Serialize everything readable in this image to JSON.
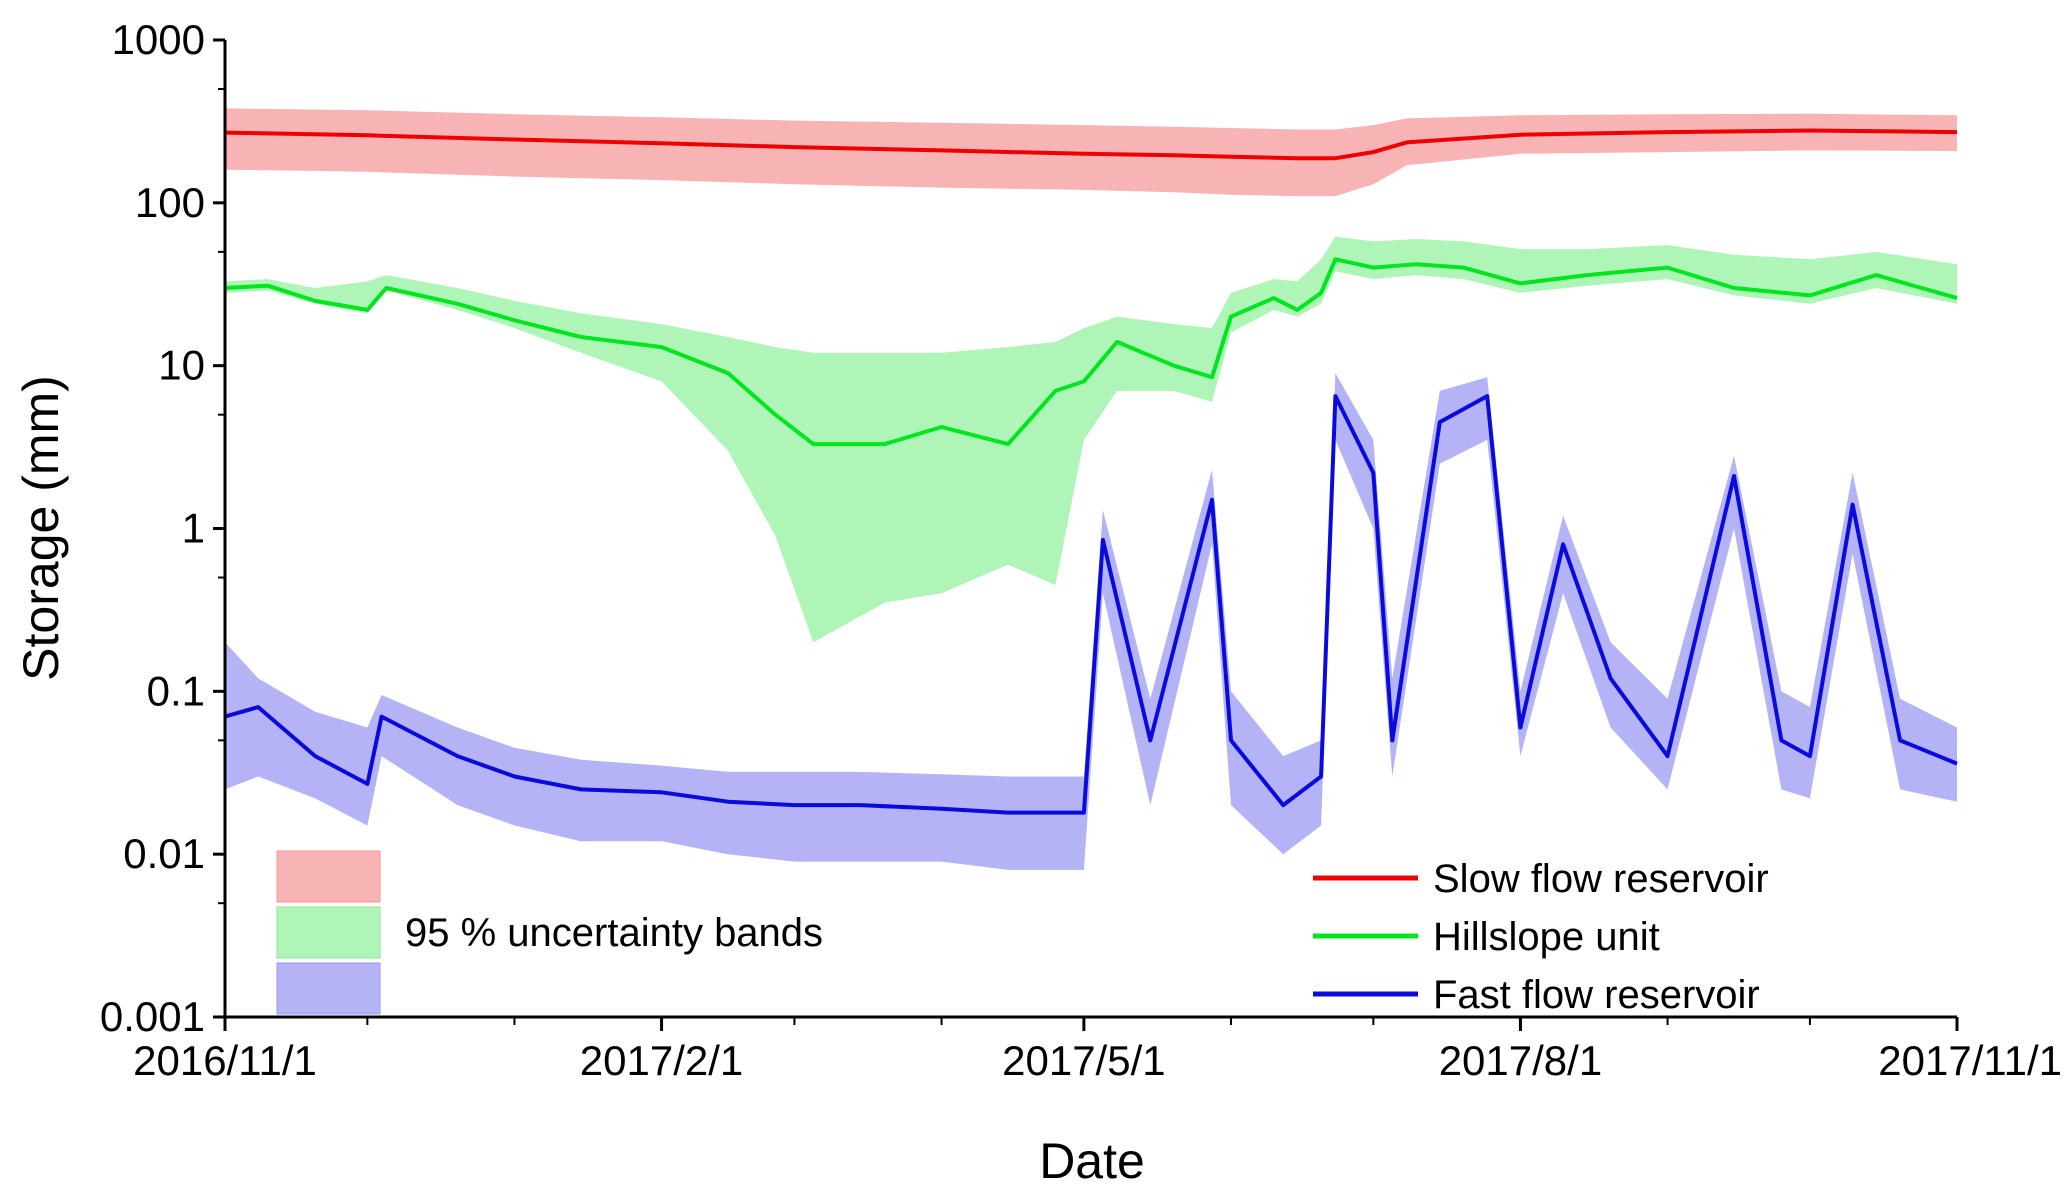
{
  "chart_data": {
    "type": "line",
    "xlabel": "Date",
    "ylabel": "Storage (mm)",
    "yscale": "log",
    "ylim": [
      0.001,
      1000
    ],
    "xlim": [
      "2016/11/1",
      "2017/11/1"
    ],
    "grid": false,
    "x_tick_labels": [
      "2016/11/1",
      "2017/2/1",
      "2017/5/1",
      "2017/8/1",
      "2017/11/1"
    ],
    "y_tick_labels": [
      "0.001",
      "0.01",
      "0.1",
      "1",
      "10",
      "100",
      "1000"
    ],
    "legend": {
      "placement": "bottom-right",
      "entries": [
        "Slow flow reservoir",
        "Hillslope unit",
        "Fast flow reservoir"
      ]
    },
    "band_legend": {
      "placement": "bottom-left",
      "label": "95 % uncertainty bands"
    },
    "colors": {
      "slow_line": "#ee0000",
      "slow_band": "#f8b4b4",
      "hill_line": "#00e61e",
      "hill_band": "#b0f5b8",
      "fast_line": "#0a0adc",
      "fast_band": "#b3b3f6"
    },
    "series": [
      {
        "name": "Slow flow reservoir",
        "x": [
          "2016/11/1",
          "2016/12/1",
          "2017/1/1",
          "2017/2/1",
          "2017/3/1",
          "2017/4/1",
          "2017/5/1",
          "2017/5/20",
          "2017/6/1",
          "2017/6/15",
          "2017/6/23",
          "2017/7/1",
          "2017/7/8",
          "2017/8/1",
          "2017/9/1",
          "2017/10/1",
          "2017/11/1"
        ],
        "y": [
          270,
          260,
          245,
          232,
          220,
          210,
          200,
          196,
          192,
          188,
          188,
          205,
          235,
          262,
          272,
          278,
          272
        ],
        "band_lower": [
          160,
          155,
          145,
          138,
          130,
          124,
          120,
          116,
          112,
          110,
          110,
          130,
          170,
          200,
          205,
          210,
          208
        ],
        "band_upper": [
          380,
          370,
          350,
          335,
          320,
          310,
          300,
          293,
          288,
          282,
          282,
          300,
          330,
          345,
          350,
          352,
          345
        ]
      },
      {
        "name": "Hillslope unit",
        "x": [
          "2016/11/1",
          "2016/11/10",
          "2016/11/20",
          "2016/12/1",
          "2016/12/5",
          "2016/12/20",
          "2017/1/1",
          "2017/1/15",
          "2017/2/1",
          "2017/2/15",
          "2017/2/25",
          "2017/3/5",
          "2017/3/20",
          "2017/4/1",
          "2017/4/15",
          "2017/4/25",
          "2017/5/1",
          "2017/5/8",
          "2017/5/20",
          "2017/5/28",
          "2017/6/1",
          "2017/6/10",
          "2017/6/15",
          "2017/6/20",
          "2017/6/23",
          "2017/7/1",
          "2017/7/10",
          "2017/7/20",
          "2017/8/1",
          "2017/8/15",
          "2017/9/1",
          "2017/9/15",
          "2017/10/1",
          "2017/10/15",
          "2017/11/1"
        ],
        "y": [
          30,
          31,
          25,
          22,
          30,
          24,
          19,
          15,
          13,
          9,
          5,
          3.3,
          3.3,
          4.2,
          3.3,
          7,
          8,
          14,
          10,
          8.5,
          20,
          26,
          22,
          28,
          45,
          40,
          42,
          40,
          32,
          36,
          40,
          30,
          27,
          36,
          26
        ],
        "band_lower": [
          28,
          29,
          24,
          21,
          29,
          22,
          17,
          12,
          8,
          3,
          0.9,
          0.2,
          0.35,
          0.4,
          0.6,
          0.45,
          3.5,
          7,
          7,
          6,
          16,
          22,
          20,
          24,
          38,
          34,
          36,
          34,
          28,
          31,
          34,
          27,
          24,
          30,
          24
        ],
        "band_upper": [
          33,
          34,
          30,
          33,
          36,
          30,
          25,
          21,
          18,
          15,
          13,
          12,
          12,
          12,
          13,
          14,
          17,
          20,
          18,
          17,
          28,
          34,
          33,
          45,
          62,
          58,
          60,
          58,
          52,
          52,
          55,
          48,
          45,
          50,
          42
        ]
      },
      {
        "name": "Fast flow reservoir",
        "x": [
          "2016/11/1",
          "2016/11/8",
          "2016/11/20",
          "2016/12/1",
          "2016/12/4",
          "2016/12/20",
          "2017/1/1",
          "2017/1/15",
          "2017/2/1",
          "2017/2/15",
          "2017/3/1",
          "2017/3/15",
          "2017/4/1",
          "2017/4/15",
          "2017/5/1",
          "2017/5/5",
          "2017/5/15",
          "2017/5/28",
          "2017/6/1",
          "2017/6/12",
          "2017/6/20",
          "2017/6/23",
          "2017/7/1",
          "2017/7/5",
          "2017/7/15",
          "2017/7/25",
          "2017/8/1",
          "2017/8/10",
          "2017/8/20",
          "2017/9/1",
          "2017/9/15",
          "2017/9/25",
          "2017/10/1",
          "2017/10/10",
          "2017/10/20",
          "2017/11/1"
        ],
        "y": [
          0.07,
          0.08,
          0.04,
          0.027,
          0.07,
          0.04,
          0.03,
          0.025,
          0.024,
          0.021,
          0.02,
          0.02,
          0.019,
          0.018,
          0.018,
          0.85,
          0.05,
          1.5,
          0.05,
          0.02,
          0.03,
          6.5,
          2.2,
          0.05,
          4.5,
          6.5,
          0.06,
          0.8,
          0.12,
          0.04,
          2.1,
          0.05,
          0.04,
          1.4,
          0.05,
          0.036
        ],
        "band_lower": [
          0.025,
          0.03,
          0.022,
          0.015,
          0.04,
          0.02,
          0.015,
          0.012,
          0.012,
          0.01,
          0.009,
          0.009,
          0.009,
          0.008,
          0.008,
          0.4,
          0.02,
          0.8,
          0.02,
          0.01,
          0.015,
          3.5,
          1.0,
          0.03,
          2.5,
          3.5,
          0.04,
          0.4,
          0.06,
          0.025,
          1.0,
          0.025,
          0.022,
          0.7,
          0.025,
          0.021
        ],
        "band_upper": [
          0.2,
          0.12,
          0.075,
          0.06,
          0.095,
          0.06,
          0.045,
          0.038,
          0.035,
          0.032,
          0.032,
          0.032,
          0.031,
          0.03,
          0.03,
          1.3,
          0.09,
          2.3,
          0.1,
          0.04,
          0.05,
          9,
          3.5,
          0.12,
          7,
          8.5,
          0.1,
          1.2,
          0.2,
          0.09,
          2.8,
          0.1,
          0.08,
          2.2,
          0.09,
          0.06
        ]
      }
    ]
  }
}
